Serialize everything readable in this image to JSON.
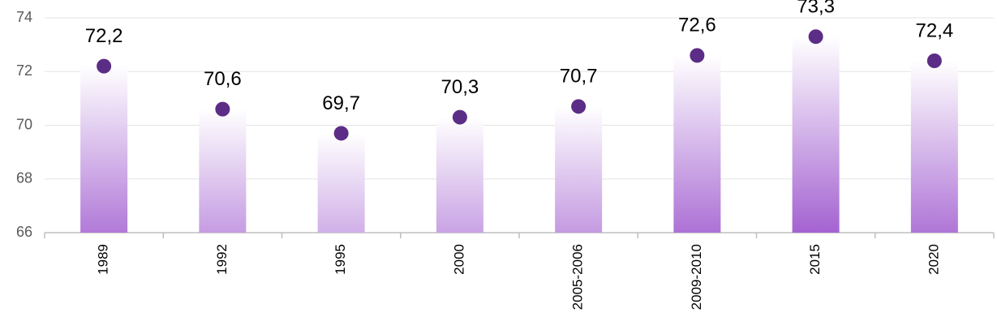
{
  "chart_data": {
    "type": "bar",
    "categories": [
      "1989",
      "1992",
      "1995",
      "2000",
      "2005-2006",
      "2009-2010",
      "2015",
      "2020"
    ],
    "values": [
      72.2,
      70.6,
      69.7,
      70.3,
      70.7,
      72.6,
      73.3,
      72.4
    ],
    "value_labels": [
      "72,2",
      "70,6",
      "69,7",
      "70,3",
      "70,7",
      "72,6",
      "73,3",
      "72,4"
    ],
    "color": "#a05ccf",
    "marker_color": "#5c2d86",
    "ylim": [
      66,
      74
    ],
    "yticks": [
      66,
      68,
      70,
      72,
      74
    ],
    "grid": true
  }
}
